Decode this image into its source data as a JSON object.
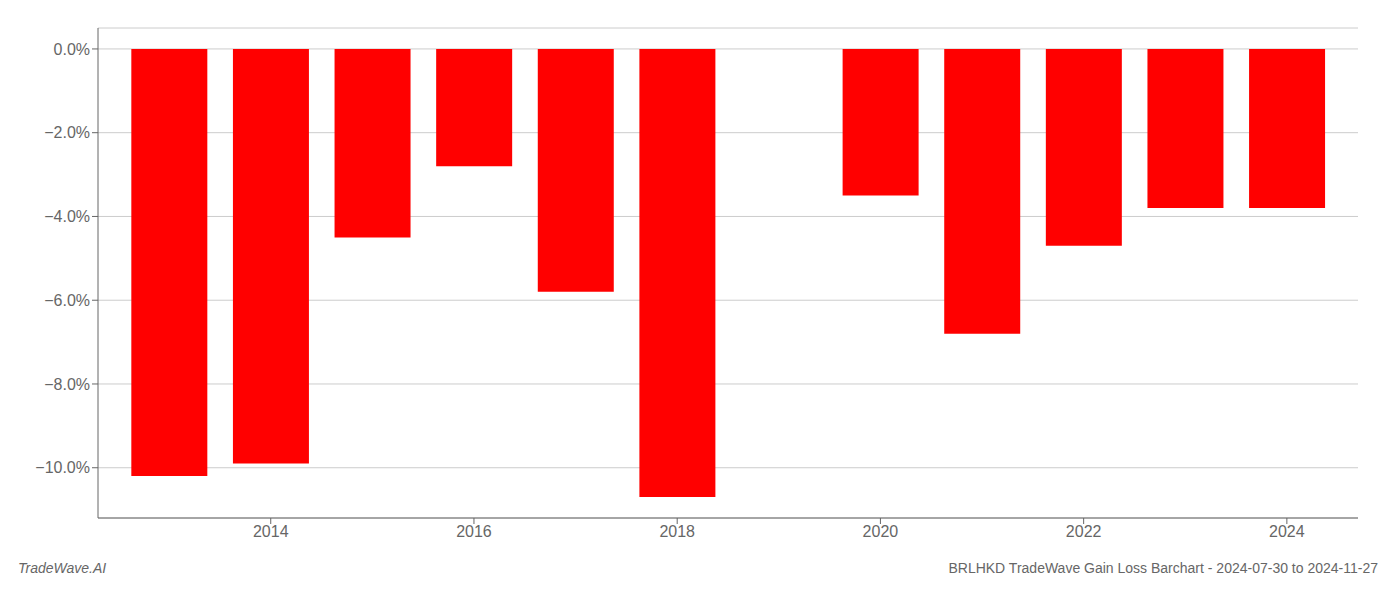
{
  "chart_data": {
    "type": "bar",
    "title": "BRLHKD TradeWave Gain Loss Barchart - 2024-07-30 to 2024-11-27",
    "annotations": [
      "TradeWave.AI"
    ],
    "x": [
      2013,
      2014,
      2015,
      2016,
      2017,
      2018,
      2019,
      2020,
      2021,
      2022,
      2023,
      2024
    ],
    "values": [
      -0.102,
      -0.099,
      -0.045,
      -0.028,
      -0.058,
      -0.107,
      0,
      -0.035,
      -0.068,
      -0.047,
      -0.038,
      -0.038
    ],
    "color": "#ff0000",
    "xlim": [
      2012.3,
      2024.7
    ],
    "xticks": [
      2014,
      2016,
      2018,
      2020,
      2022,
      2024
    ],
    "ylim": [
      -0.112,
      0.005
    ],
    "yticks": [
      {
        "value": 0.0,
        "label": "0.0%"
      },
      {
        "value": -0.02,
        "label": "−2.0%"
      },
      {
        "value": -0.04,
        "label": "−4.0%"
      },
      {
        "value": -0.06,
        "label": "−6.0%"
      },
      {
        "value": -0.08,
        "label": "−8.0%"
      },
      {
        "value": -0.1,
        "label": "−10.0%"
      }
    ],
    "grid": true
  }
}
